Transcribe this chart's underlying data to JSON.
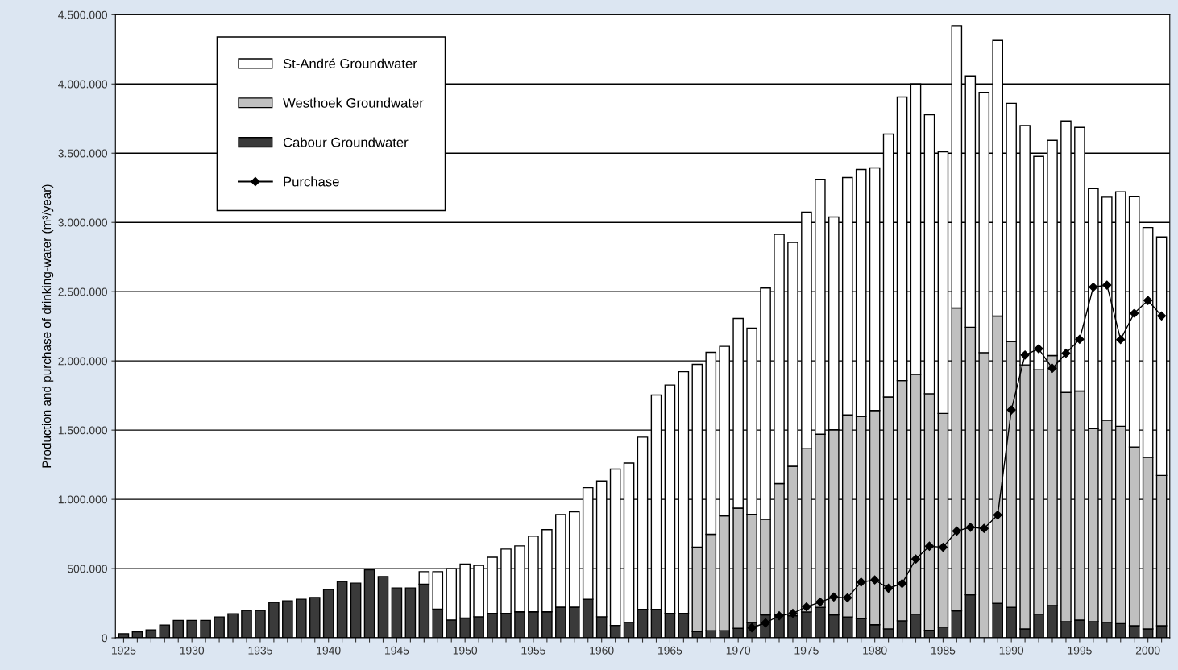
{
  "chart_data": {
    "type": "bar",
    "stacked": true,
    "ylabel": "Production and purchase of drinking-water (m³/year)",
    "categories": [
      "1925",
      null,
      null,
      null,
      null,
      "1930",
      null,
      null,
      null,
      null,
      "1935",
      null,
      null,
      null,
      null,
      "1940",
      null,
      null,
      null,
      null,
      "1945",
      null,
      null,
      null,
      null,
      "1950",
      null,
      null,
      null,
      null,
      "1955",
      null,
      null,
      null,
      null,
      "1960",
      null,
      null,
      null,
      null,
      "1965",
      null,
      null,
      null,
      null,
      "1970",
      null,
      null,
      null,
      null,
      "1975",
      null,
      null,
      null,
      null,
      "1980",
      null,
      null,
      null,
      null,
      "1985",
      null,
      null,
      null,
      null,
      "1990",
      null,
      null,
      null,
      null,
      "1995",
      null,
      null,
      null,
      null,
      "2000",
      null
    ],
    "series": [
      {
        "name": "Cabour Groundwater",
        "color": "#3a3a3a",
        "values": [
          30000,
          44000,
          58000,
          93000,
          126000,
          126000,
          126000,
          151000,
          174000,
          198000,
          198000,
          256000,
          267000,
          279000,
          291000,
          349000,
          407000,
          395000,
          492000,
          442000,
          360000,
          360000,
          387000,
          207000,
          129000,
          143000,
          152000,
          176000,
          176000,
          188000,
          188000,
          188000,
          221000,
          221000,
          279000,
          152000,
          90000,
          113000,
          205000,
          205000,
          176000,
          176000,
          45000,
          52000,
          52000,
          69000,
          112000,
          166000,
          166000,
          160000,
          187000,
          220000,
          166000,
          151000,
          138000,
          95000,
          65000,
          123000,
          171000,
          54000,
          78000,
          195000,
          311000,
          null,
          249000,
          220000,
          64000,
          171000,
          234000,
          117000,
          128000,
          117000,
          113000,
          103000,
          88000,
          64000,
          88000
        ]
      },
      {
        "name": "Westhoek Groundwater",
        "color": "#c0c0c0",
        "values": [
          null,
          null,
          null,
          null,
          null,
          null,
          null,
          null,
          null,
          null,
          null,
          null,
          null,
          null,
          null,
          null,
          null,
          null,
          null,
          null,
          null,
          null,
          null,
          null,
          null,
          null,
          null,
          null,
          null,
          null,
          null,
          null,
          null,
          null,
          null,
          null,
          null,
          null,
          null,
          null,
          null,
          null,
          610000,
          696000,
          829000,
          868000,
          780000,
          690000,
          948000,
          1079000,
          1179000,
          1250000,
          1336000,
          1459000,
          1461000,
          1547000,
          1674000,
          1735000,
          1732000,
          1709000,
          1543000,
          2187000,
          1932000,
          2060000,
          2075000,
          1920000,
          1907000,
          1765000,
          1805000,
          1656000,
          1655000,
          1393000,
          1459000,
          1425000,
          1290000,
          1240000,
          1085000
        ]
      },
      {
        "name": "St-André Groundwater",
        "color": "#ffffff",
        "values": [
          null,
          null,
          null,
          null,
          null,
          null,
          null,
          null,
          null,
          null,
          null,
          null,
          null,
          null,
          null,
          null,
          null,
          null,
          null,
          null,
          null,
          null,
          91000,
          271000,
          371000,
          390000,
          371000,
          406000,
          465000,
          476000,
          546000,
          593000,
          670000,
          689000,
          805000,
          981000,
          1129000,
          1149000,
          1244000,
          1549000,
          1650000,
          1746000,
          1320000,
          1314000,
          1224000,
          1369000,
          1345000,
          1670000,
          1800000,
          1616000,
          1709000,
          1842000,
          1537000,
          1714000,
          1783000,
          1752000,
          1899000,
          2048000,
          2097000,
          2014000,
          1889000,
          2039000,
          1815000,
          1880000,
          1990000,
          1720000,
          1729000,
          1541000,
          1554000,
          1960000,
          1903000,
          1734000,
          1610000,
          1693000,
          1808000,
          1659000,
          1722000
        ]
      },
      {
        "name": "Purchase",
        "type": "line",
        "color": "#000000",
        "marker": "diamond",
        "values": [
          null,
          null,
          null,
          null,
          null,
          null,
          null,
          null,
          null,
          null,
          null,
          null,
          null,
          null,
          null,
          null,
          null,
          null,
          null,
          null,
          null,
          null,
          null,
          null,
          null,
          null,
          null,
          null,
          null,
          null,
          null,
          null,
          null,
          null,
          null,
          null,
          null,
          null,
          null,
          null,
          null,
          null,
          null,
          null,
          null,
          null,
          73000,
          108000,
          159000,
          177000,
          224000,
          259000,
          295000,
          289000,
          403000,
          418000,
          358000,
          392000,
          569000,
          662000,
          654000,
          771000,
          798000,
          790000,
          887000,
          1646000,
          2043000,
          2088000,
          1946000,
          2055000,
          2156000,
          2533000,
          2547000,
          2154000,
          2344000,
          2437000,
          2325000
        ]
      }
    ],
    "ylim": [
      0,
      4500000
    ],
    "yticks": [
      {
        "value": 0,
        "label": "0"
      },
      {
        "value": 500000,
        "label": "500.000"
      },
      {
        "value": 1000000,
        "label": "1.000.000"
      },
      {
        "value": 1500000,
        "label": "1.500.000"
      },
      {
        "value": 2000000,
        "label": "2.000.000"
      },
      {
        "value": 2500000,
        "label": "2.500.000"
      },
      {
        "value": 3000000,
        "label": "3.000.000"
      },
      {
        "value": 3500000,
        "label": "3.500.000"
      },
      {
        "value": 4000000,
        "label": "4.000.000"
      },
      {
        "value": 4500000,
        "label": "4.500.000"
      }
    ],
    "grid": "y",
    "legend": "top left"
  }
}
